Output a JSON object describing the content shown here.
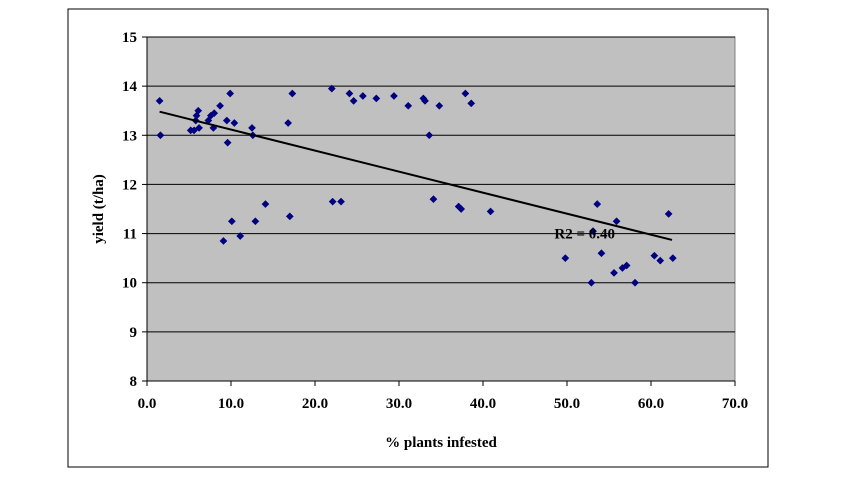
{
  "chart_data": {
    "type": "scatter",
    "title": "",
    "xlabel": "% plants infested",
    "ylabel": "yield (t/ha)",
    "xlim": [
      0,
      70
    ],
    "ylim": [
      8,
      15
    ],
    "x_ticks": [
      "0.0",
      "10.0",
      "20.0",
      "30.0",
      "40.0",
      "50.0",
      "60.0",
      "70.0"
    ],
    "y_ticks": [
      "8",
      "9",
      "10",
      "11",
      "12",
      "13",
      "14",
      "15"
    ],
    "grid": "horizontal",
    "plot_background": "#c0c0c0",
    "marker_color": "#000080",
    "trendline": {
      "x": [
        1.5,
        62.5
      ],
      "y": [
        13.48,
        10.87
      ],
      "color": "#000000"
    },
    "annotation": {
      "text": "R2 = 0.40",
      "x": 48.5,
      "y": 11.0
    },
    "series": [
      {
        "name": "yield",
        "points": [
          [
            1.5,
            13.7
          ],
          [
            1.6,
            13.0
          ],
          [
            5.2,
            13.1
          ],
          [
            5.6,
            13.1
          ],
          [
            5.8,
            13.3
          ],
          [
            5.9,
            13.4
          ],
          [
            6.1,
            13.5
          ],
          [
            6.2,
            13.15
          ],
          [
            7.3,
            13.3
          ],
          [
            7.6,
            13.4
          ],
          [
            7.9,
            13.15
          ],
          [
            8.0,
            13.45
          ],
          [
            8.7,
            13.6
          ],
          [
            9.5,
            13.3
          ],
          [
            9.6,
            12.85
          ],
          [
            9.9,
            13.85
          ],
          [
            10.4,
            13.25
          ],
          [
            12.5,
            13.15
          ],
          [
            12.6,
            13.0
          ],
          [
            16.8,
            13.25
          ],
          [
            17.3,
            13.85
          ],
          [
            9.1,
            10.85
          ],
          [
            10.1,
            11.25
          ],
          [
            11.1,
            10.95
          ],
          [
            12.9,
            11.25
          ],
          [
            14.1,
            11.6
          ],
          [
            17.0,
            11.35
          ],
          [
            22.0,
            13.95
          ],
          [
            24.1,
            13.85
          ],
          [
            24.6,
            13.7
          ],
          [
            25.7,
            13.8
          ],
          [
            27.3,
            13.75
          ],
          [
            29.4,
            13.8
          ],
          [
            31.1,
            13.6
          ],
          [
            32.9,
            13.75
          ],
          [
            33.1,
            13.7
          ],
          [
            33.6,
            13.0
          ],
          [
            34.8,
            13.6
          ],
          [
            37.9,
            13.85
          ],
          [
            38.6,
            13.65
          ],
          [
            22.1,
            11.65
          ],
          [
            23.1,
            11.65
          ],
          [
            34.1,
            11.7
          ],
          [
            37.1,
            11.55
          ],
          [
            37.4,
            11.5
          ],
          [
            40.9,
            11.45
          ],
          [
            49.8,
            10.5
          ],
          [
            52.9,
            10.0
          ],
          [
            53.1,
            11.05
          ],
          [
            53.6,
            11.6
          ],
          [
            54.1,
            10.6
          ],
          [
            55.6,
            10.2
          ],
          [
            55.9,
            11.25
          ],
          [
            56.6,
            10.3
          ],
          [
            57.1,
            10.35
          ],
          [
            58.1,
            10.0
          ],
          [
            60.4,
            10.55
          ],
          [
            61.1,
            10.45
          ],
          [
            62.1,
            11.4
          ],
          [
            62.6,
            10.5
          ]
        ]
      }
    ]
  }
}
